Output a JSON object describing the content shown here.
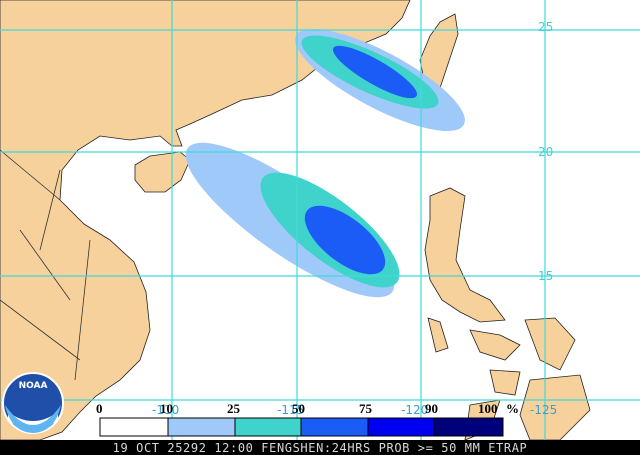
{
  "map": {
    "latitude_labels": [
      "25",
      "20",
      "15"
    ],
    "longitude_labels": [
      "-110",
      "-115",
      "-120",
      "-125"
    ]
  },
  "legend": {
    "labels": [
      "0",
      "10",
      "25",
      "50",
      "75",
      "90",
      "100",
      "%"
    ]
  },
  "logo": "NOAA",
  "footer": "19 OCT 25292 12:00 FENGSHEN:24HRS PROB >= 50 MM ETRAP"
}
